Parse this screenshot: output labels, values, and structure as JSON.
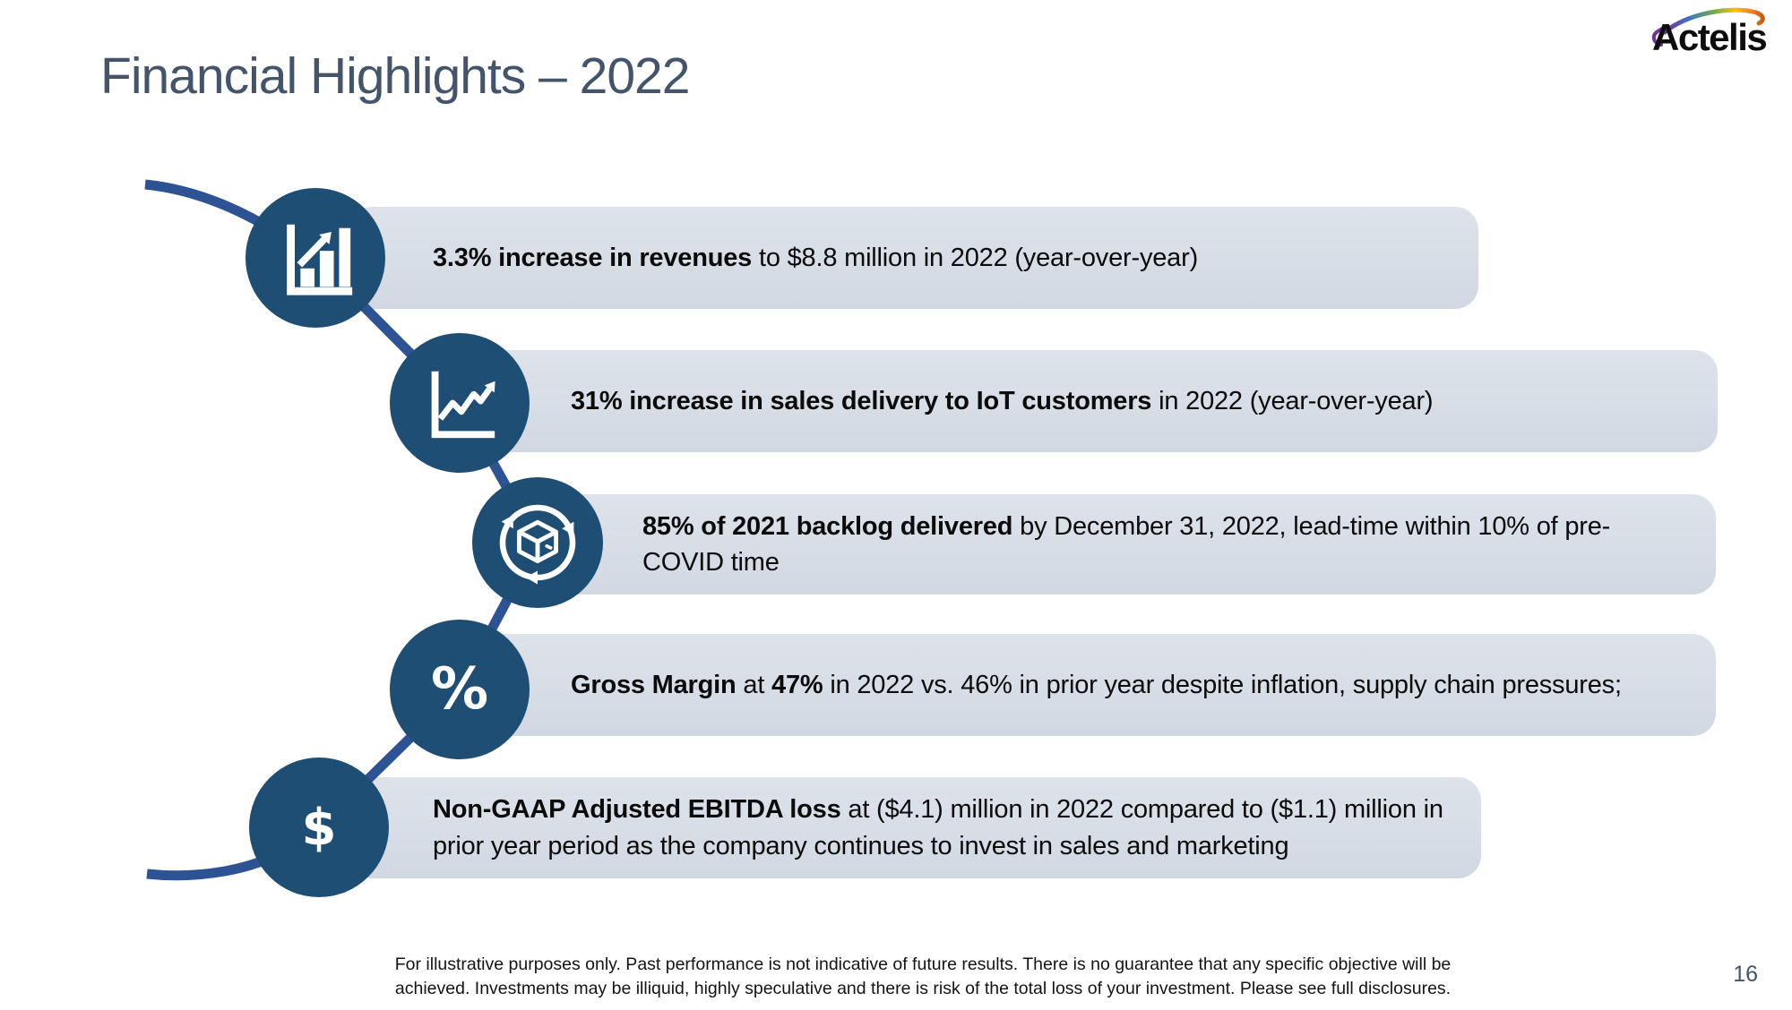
{
  "slide": {
    "title": "Financial Highlights – 2022"
  },
  "logo": {
    "text": "Actelis"
  },
  "colors": {
    "navy": "#1F4E74",
    "line-blue": "#2E5395",
    "bar-top": "#DEE3EA",
    "bar-bottom": "#D2D8E2",
    "title-color": "#44546A",
    "body-color": "#0b0b0b"
  },
  "rows": [
    {
      "icon": "bar-chart-growth-icon",
      "glyph": null,
      "segments": [
        {
          "t": "3.3% increase in revenues",
          "b": true
        },
        {
          "t": " to $8.8 million in 2022 (year-over-year)",
          "b": false
        }
      ]
    },
    {
      "icon": "line-chart-growth-icon",
      "glyph": null,
      "segments": [
        {
          "t": "31% increase in sales delivery to IoT customers",
          "b": true
        },
        {
          "t": " in 2022 (year-over-year)",
          "b": false
        }
      ]
    },
    {
      "icon": "package-delivery-cycle-icon",
      "glyph": null,
      "segments": [
        {
          "t": "85% of 2021 backlog delivered",
          "b": true
        },
        {
          "t": " by December 31, 2022, lead-time within 10% of pre-COVID time",
          "b": false
        }
      ]
    },
    {
      "icon": "percent-icon",
      "glyph": "%",
      "segments": [
        {
          "t": "Gross Margin",
          "b": true
        },
        {
          "t": " at ",
          "b": false
        },
        {
          "t": "47%",
          "b": true
        },
        {
          "t": " in 2022 vs. 46% in prior year despite inflation, supply chain pressures;",
          "b": false
        }
      ]
    },
    {
      "icon": "dollar-icon",
      "glyph": "$",
      "segments": [
        {
          "t": "Non-GAAP Adjusted EBITDA loss",
          "b": true
        },
        {
          "t": " at ($4.1) million in 2022 compared to ($1.1) million in prior year period as the company continues to invest in sales and marketing",
          "b": false
        }
      ]
    }
  ],
  "footer": {
    "disclaimer": "For illustrative purposes only. Past performance is not indicative of future results.  There is no guarantee that any specific objective will be achieved.  Investments may be illiquid, highly speculative and there is risk of the total loss of your investment.  Please see full disclosures.",
    "page_number": "16"
  }
}
